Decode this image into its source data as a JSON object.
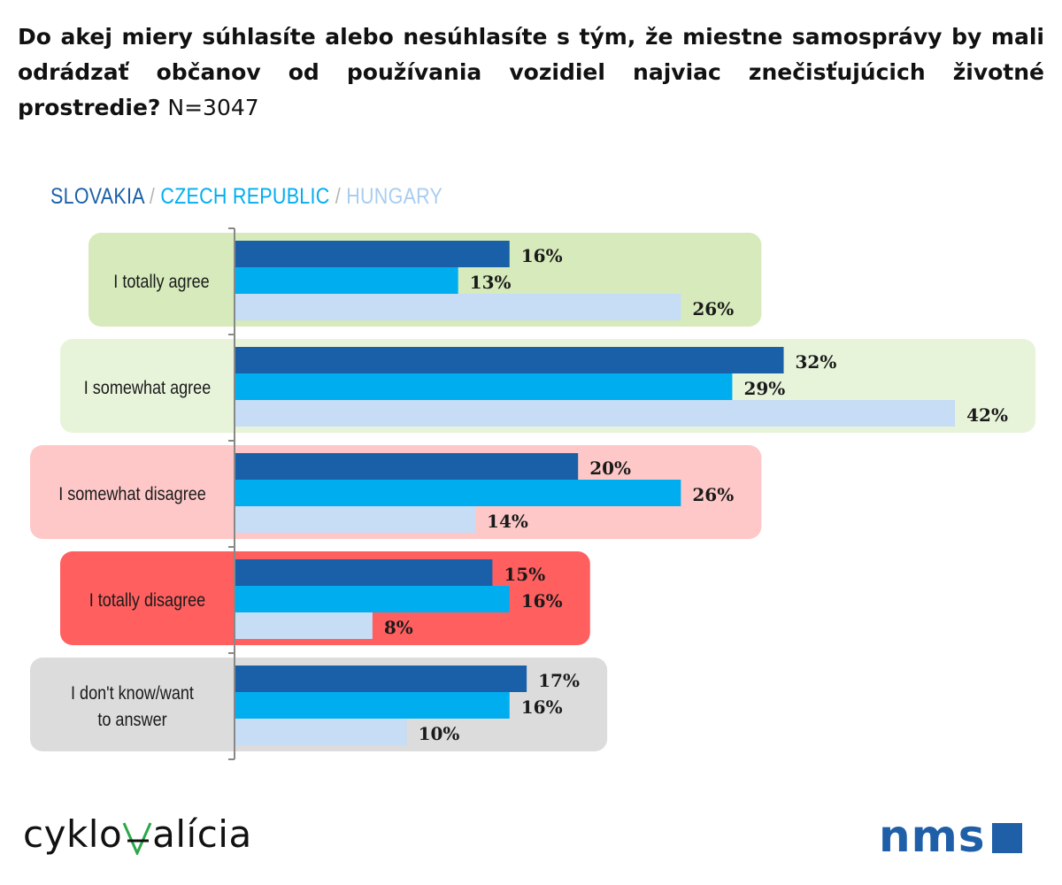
{
  "title": {
    "question": "Do akej miery súhlasíte alebo nesúhlasíte s tým, že miestne samosprávy by mali odrádzať občanov od používania vozidiel najviac znečisťujúcich životné prostredie?",
    "n": "N=3047"
  },
  "legend": {
    "items": [
      {
        "label": "SLOVAKIA",
        "color": "#1a60a8"
      },
      {
        "label": "CZECH REPUBLIC",
        "color": "#00aeef"
      },
      {
        "label": "HUNGARY",
        "color": "#a9cdf0"
      }
    ],
    "separator": "/"
  },
  "chart_data": {
    "type": "bar",
    "orientation": "horizontal",
    "categories": [
      "I totally agree",
      "I somewhat agree",
      "I somewhat disagree",
      "I totally disagree",
      "I don't know/want to answer"
    ],
    "category_colors": [
      "#d6eabb",
      "#e8f4da",
      "#ffc8c8",
      "#ff5f5f",
      "#dcdcdc"
    ],
    "series": [
      {
        "name": "SLOVAKIA",
        "color": "#1a60a8",
        "values": [
          16,
          32,
          20,
          15,
          17
        ]
      },
      {
        "name": "CZECH REPUBLIC",
        "color": "#00aeef",
        "values": [
          13,
          29,
          26,
          16,
          16
        ]
      },
      {
        "name": "HUNGARY",
        "color": "#c6ddf5",
        "values": [
          26,
          42,
          14,
          8,
          10
        ]
      }
    ],
    "value_suffix": "%"
  },
  "logos": {
    "left": {
      "text": "cyklokoalícia",
      "accent_color": "#2aa84a"
    },
    "right": {
      "text": "nms",
      "color": "#1e5fa8"
    }
  }
}
